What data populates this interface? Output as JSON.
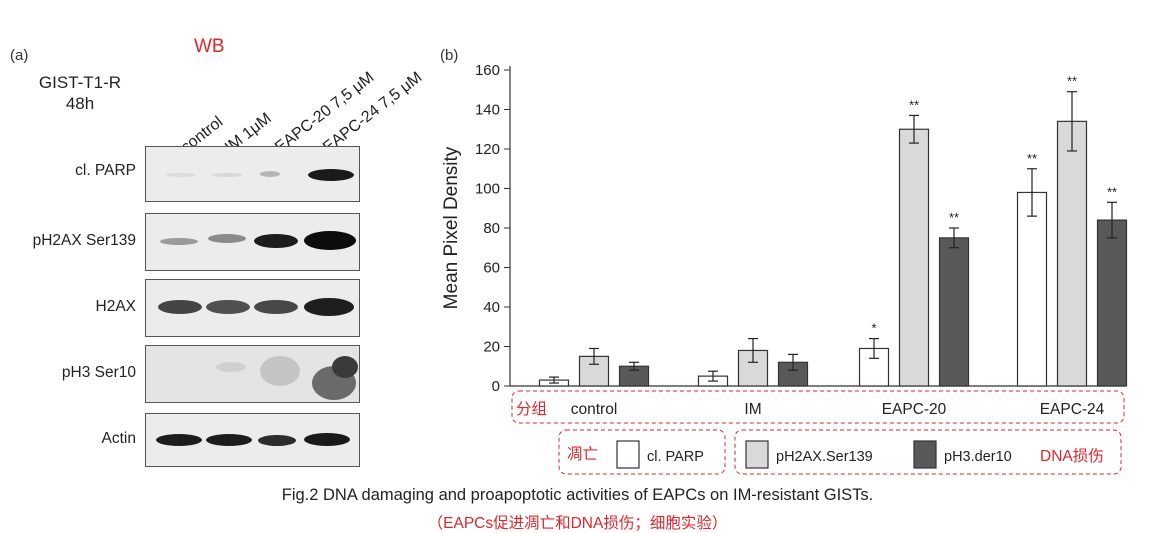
{
  "panel_a": {
    "label": "(a)",
    "wb_title": "WB",
    "cell_line": "GIST-T1-R",
    "time": "48h",
    "lanes": [
      "control",
      "IM 1μM",
      "EAPC-20 7,5 μM",
      "EAPC-24 7,5 μM"
    ],
    "rows": [
      "cl. PARP",
      "pH2AX Ser139",
      "H2AX",
      "pH3 Ser10",
      "Actin"
    ]
  },
  "panel_b": {
    "label": "(b)",
    "group_label_cn": "分组",
    "legend_apoptosis_cn": "凋亡",
    "legend_dna_damage_cn": "DNA损伤"
  },
  "chart_data": {
    "type": "bar",
    "title": "",
    "xlabel": "",
    "ylabel": "Mean Pixel Density",
    "ylim": [
      0,
      160
    ],
    "yticks": [
      0,
      20,
      40,
      60,
      80,
      100,
      120,
      140,
      160
    ],
    "categories": [
      "control",
      "IM",
      "EAPC-20",
      "EAPC-24"
    ],
    "series": [
      {
        "name": "cl. PARP",
        "color": "#ffffff",
        "values": [
          3,
          5,
          19,
          98
        ],
        "errors": [
          1.5,
          2.5,
          5,
          12
        ],
        "significance": [
          "",
          "",
          "*",
          "**"
        ]
      },
      {
        "name": "pH2AX.Ser139",
        "color": "#d9d9d9",
        "values": [
          15,
          18,
          130,
          134
        ],
        "errors": [
          4,
          6,
          7,
          15
        ],
        "significance": [
          "",
          "",
          "**",
          "**"
        ]
      },
      {
        "name": "pH3.der10",
        "color": "#595959",
        "values": [
          10,
          12,
          75,
          84
        ],
        "errors": [
          2,
          4,
          5,
          9
        ],
        "significance": [
          "",
          "",
          "**",
          "**"
        ]
      }
    ],
    "legend_position": "bottom"
  },
  "caption": {
    "text": "Fig.2 DNA damaging and proapoptotic activities of EAPCs on IM-resistant GISTs.",
    "cn": "（EAPCs促进凋亡和DNA损伤；细胞实验）"
  }
}
